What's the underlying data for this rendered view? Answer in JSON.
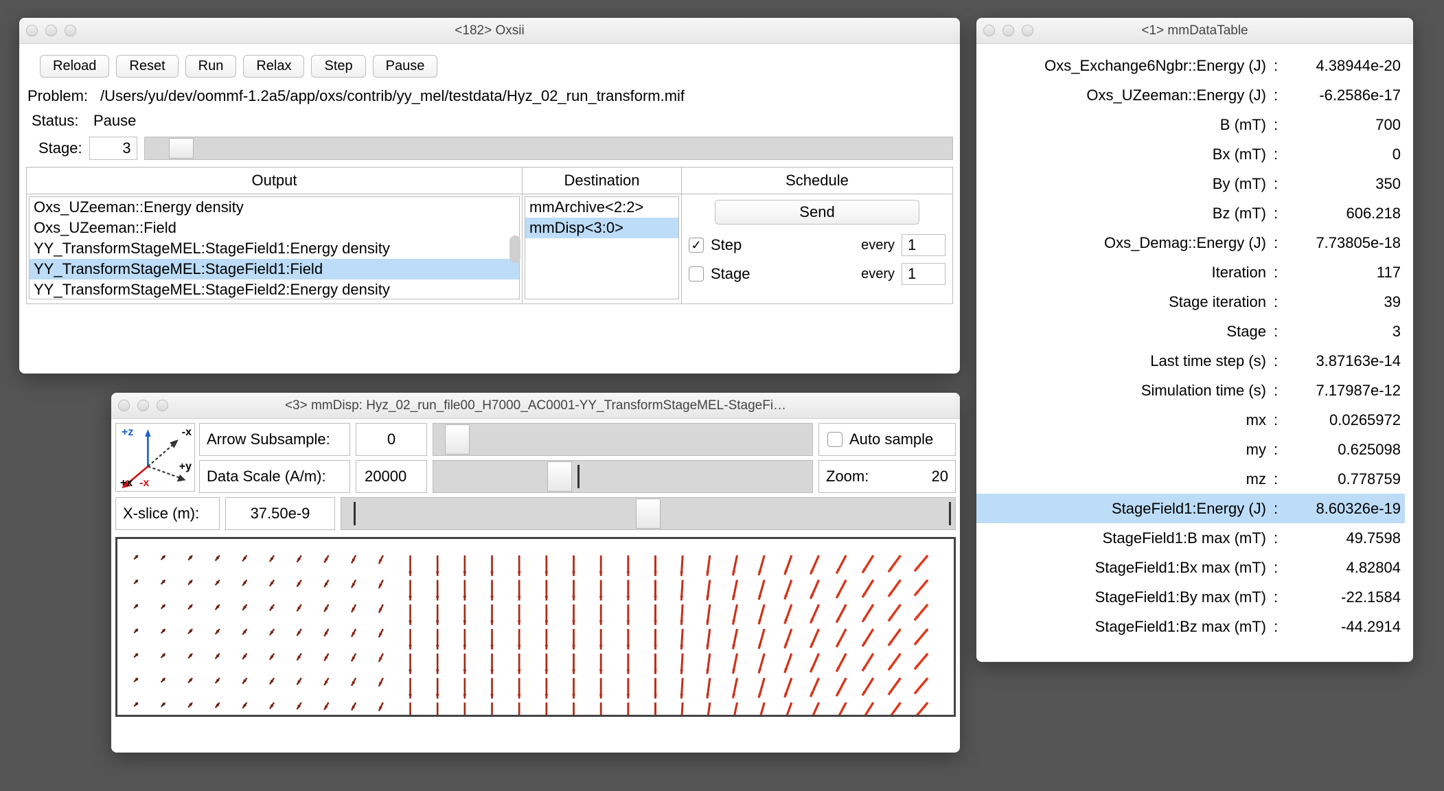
{
  "oxsii": {
    "title": "<182> Oxsii",
    "buttons": [
      "Reload",
      "Reset",
      "Run",
      "Relax",
      "Step",
      "Pause"
    ],
    "problem_label": "Problem:",
    "problem_path": "/Users/yu/dev/oommf-1.2a5/app/oxs/contrib/yy_mel/testdata/Hyz_02_run_transform.mif",
    "status_label": "Status:",
    "status_value": "Pause",
    "stage_label": "Stage:",
    "stage_value": "3",
    "stage_slider_pos_pct": 3,
    "headers": {
      "output": "Output",
      "destination": "Destination",
      "schedule": "Schedule"
    },
    "output_items": [
      {
        "label": "Oxs_UZeeman::Energy density",
        "selected": false
      },
      {
        "label": "Oxs_UZeeman::Field",
        "selected": false
      },
      {
        "label": "YY_TransformStageMEL:StageField1:Energy density",
        "selected": false
      },
      {
        "label": "YY_TransformStageMEL:StageField1:Field",
        "selected": true
      },
      {
        "label": "YY_TransformStageMEL:StageField2:Energy density",
        "selected": false
      }
    ],
    "destination_items": [
      {
        "label": "mmArchive<2:2>",
        "selected": false
      },
      {
        "label": "mmDisp<3:0>",
        "selected": true
      }
    ],
    "schedule": {
      "send_label": "Send",
      "step_label": "Step",
      "step_checked": true,
      "step_every": "1",
      "stage_label": "Stage",
      "stage_checked": false,
      "stage_every": "1",
      "every_label": "every"
    }
  },
  "mmdisp": {
    "title": "<3> mmDisp: Hyz_02_run_file00_H7000_AC0001-YY_TransformStageMEL-StageFi…",
    "arrow_subsample_label": "Arrow Subsample:",
    "arrow_subsample_value": "0",
    "arrow_slider_pos_pct": 3,
    "auto_sample_label": "Auto sample",
    "auto_sample_checked": false,
    "data_scale_label": "Data Scale (A/m):",
    "data_scale_value": "20000",
    "data_scale_slider_pos_pct": 30,
    "data_scale_tick_pct": 38,
    "zoom_label": "Zoom:",
    "zoom_value": "20",
    "xslice_label": "X-slice (m):",
    "xslice_value": "37.50e-9",
    "xslice_slider_pos_pct": 48,
    "xslice_tick_low_pct": 2,
    "xslice_tick_high_pct": 99,
    "axes": {
      "pz": "+z",
      "mx_top": "-x",
      "py": "+y",
      "px": "+x",
      "mx_bot": "-x"
    },
    "vector_grid": {
      "rows": 7,
      "cols": 30,
      "color_left": "#5a1a0a",
      "color_mid": "#b02a18",
      "color_right": "#e0391c",
      "bg": "#ffffff",
      "border": "#333333"
    }
  },
  "mmdata": {
    "title": "<1> mmDataTable",
    "rows": [
      {
        "label": "Oxs_Exchange6Ngbr::Energy (J)",
        "value": "4.38944e-20"
      },
      {
        "label": "Oxs_UZeeman::Energy (J)",
        "value": "-6.2586e-17"
      },
      {
        "label": "B (mT)",
        "value": "700"
      },
      {
        "label": "Bx (mT)",
        "value": "0"
      },
      {
        "label": "By (mT)",
        "value": "350"
      },
      {
        "label": "Bz (mT)",
        "value": "606.218"
      },
      {
        "label": "Oxs_Demag::Energy (J)",
        "value": "7.73805e-18"
      },
      {
        "label": "Iteration",
        "value": "117"
      },
      {
        "label": "Stage iteration",
        "value": "39"
      },
      {
        "label": "Stage",
        "value": "3"
      },
      {
        "label": "Last time step (s)",
        "value": "3.87163e-14"
      },
      {
        "label": "Simulation time (s)",
        "value": "7.17987e-12"
      },
      {
        "label": "mx",
        "value": "0.0265972"
      },
      {
        "label": "my",
        "value": "0.625098"
      },
      {
        "label": "mz",
        "value": "0.778759"
      },
      {
        "label": "StageField1:Energy (J)",
        "value": "8.60326e-19",
        "selected": true
      },
      {
        "label": "StageField1:B max (mT)",
        "value": "49.7598"
      },
      {
        "label": "StageField1:Bx max (mT)",
        "value": "4.82804"
      },
      {
        "label": "StageField1:By max (mT)",
        "value": "-22.1584"
      },
      {
        "label": "StageField1:Bz max (mT)",
        "value": "-44.2914"
      }
    ]
  },
  "colors": {
    "selection": "#bcdcf7",
    "window_bg": "#ffffff",
    "desktop_bg": "#555555"
  }
}
